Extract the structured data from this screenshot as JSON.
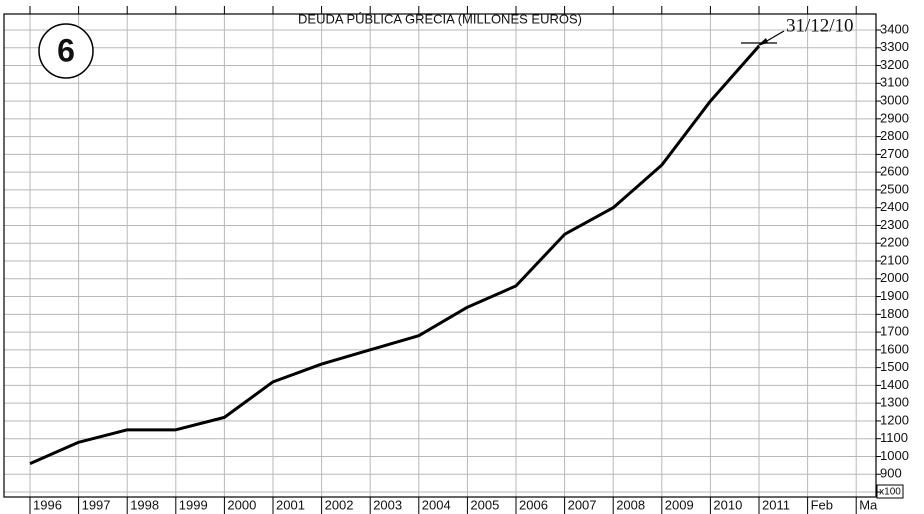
{
  "chart_data": {
    "type": "line",
    "title": "DEUDA PÚBLICA GRECIA (MILLONES EUROS)",
    "badge": "6",
    "annotation": "31/12/10",
    "scale_note": "x100",
    "categories": [
      "1996",
      "1997",
      "1998",
      "1999",
      "2000",
      "2001",
      "2002",
      "2003",
      "2004",
      "2005",
      "2006",
      "2007",
      "2008",
      "2009",
      "2010",
      "2011",
      "Feb",
      "Ma"
    ],
    "series": [
      {
        "name": "Deuda pública",
        "color": "#000000",
        "values": [
          960,
          1080,
          1150,
          1150,
          1220,
          1420,
          1520,
          1600,
          1680,
          1840,
          1960,
          2250,
          2400,
          2640,
          3000,
          3310,
          null,
          null
        ]
      }
    ],
    "ylim": [
      772,
      3490
    ],
    "yticks": [
      800,
      900,
      1000,
      1100,
      1200,
      1300,
      1400,
      1500,
      1600,
      1700,
      1800,
      1900,
      2000,
      2100,
      2200,
      2300,
      2400,
      2500,
      2600,
      2700,
      2800,
      2900,
      3000,
      3100,
      3200,
      3300,
      3400
    ],
    "grid": true
  }
}
